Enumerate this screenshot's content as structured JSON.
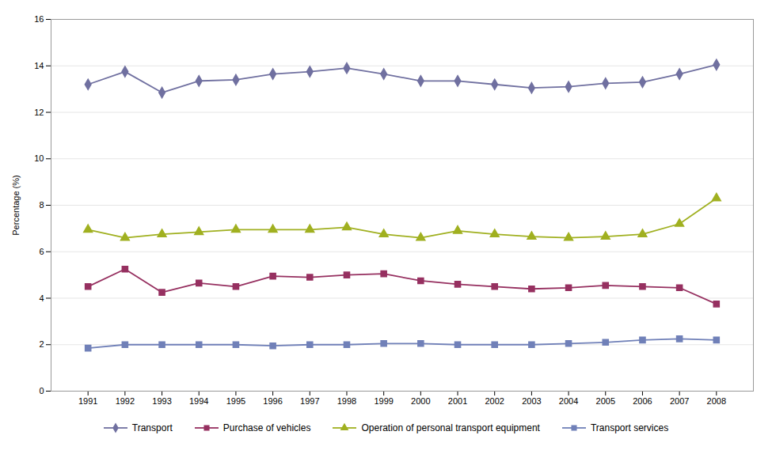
{
  "chart_data": {
    "type": "line",
    "x": [
      1991,
      1992,
      1993,
      1994,
      1995,
      1996,
      1997,
      1998,
      1999,
      2000,
      2001,
      2002,
      2003,
      2004,
      2005,
      2006,
      2007,
      2008
    ],
    "series": [
      {
        "name": "Transport",
        "color": "#7070A0",
        "marker": "diamond",
        "values": [
          13.2,
          13.75,
          12.85,
          13.35,
          13.4,
          13.65,
          13.75,
          13.9,
          13.65,
          13.35,
          13.35,
          13.2,
          13.05,
          13.1,
          13.25,
          13.3,
          13.65,
          14.05
        ]
      },
      {
        "name": "Purchase of vehicles",
        "color": "#963060",
        "marker": "square",
        "values": [
          4.5,
          5.25,
          4.25,
          4.65,
          4.5,
          4.95,
          4.9,
          5.0,
          5.05,
          4.75,
          4.6,
          4.5,
          4.4,
          4.45,
          4.55,
          4.5,
          4.45,
          3.75
        ]
      },
      {
        "name": "Operation of personal transport equipment",
        "color": "#A0B020",
        "marker": "triangle",
        "values": [
          6.95,
          6.6,
          6.75,
          6.85,
          6.95,
          6.95,
          6.95,
          7.05,
          6.75,
          6.6,
          6.9,
          6.75,
          6.65,
          6.6,
          6.65,
          6.75,
          7.2,
          8.3
        ]
      },
      {
        "name": "Transport services",
        "color": "#7080B8",
        "marker": "square",
        "values": [
          1.85,
          2.0,
          2.0,
          2.0,
          2.0,
          1.95,
          2.0,
          2.0,
          2.05,
          2.05,
          2.0,
          2.0,
          2.0,
          2.05,
          2.1,
          2.2,
          2.25,
          2.2
        ]
      }
    ],
    "ylabel": "Percentage (%)",
    "xlim": [
      1990,
      2009
    ],
    "xticks": [
      1991,
      1992,
      1993,
      1994,
      1995,
      1996,
      1997,
      1998,
      1999,
      2000,
      2001,
      2002,
      2003,
      2004,
      2005,
      2006,
      2007,
      2008
    ],
    "ylim": [
      0,
      16
    ],
    "yticks": [
      0,
      2,
      4,
      6,
      8,
      10,
      12,
      14,
      16
    ],
    "grid": true,
    "legend": "bottom"
  }
}
